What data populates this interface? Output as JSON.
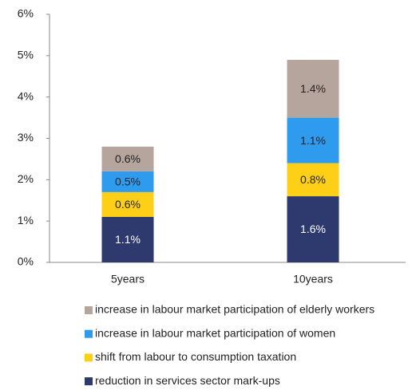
{
  "chart_data": {
    "type": "stacked_bar",
    "categories": [
      "5years",
      "10years"
    ],
    "series": [
      {
        "name": "reduction in services sector mark-ups",
        "color": "#2e3a6e",
        "values": [
          1.1,
          1.6
        ],
        "value_labels": [
          "1.1%",
          "1.6%"
        ]
      },
      {
        "name": "shift from labour to consumption taxation",
        "color": "#fdd017",
        "values": [
          0.6,
          0.8
        ],
        "value_labels": [
          "0.6%",
          "0.8%"
        ]
      },
      {
        "name": "increase in labour market participation of women",
        "color": "#2f9bef",
        "values": [
          0.5,
          1.1
        ],
        "value_labels": [
          "0.5%",
          "1.1%"
        ]
      },
      {
        "name": "increase in labour market participation of elderly workers",
        "color": "#b5a59c",
        "values": [
          0.6,
          1.4
        ],
        "value_labels": [
          "0.6%",
          "1.4%"
        ]
      }
    ],
    "ylim": [
      0,
      6
    ],
    "yticks": [
      {
        "value": 0,
        "label": "0%"
      },
      {
        "value": 1,
        "label": "1%"
      },
      {
        "value": 2,
        "label": "2%"
      },
      {
        "value": 3,
        "label": "3%"
      },
      {
        "value": 4,
        "label": "4%"
      },
      {
        "value": 5,
        "label": "5%"
      },
      {
        "value": 6,
        "label": "6%"
      }
    ],
    "grid": false,
    "legend": "bottom"
  }
}
